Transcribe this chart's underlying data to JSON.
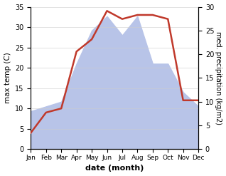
{
  "months": [
    "Jan",
    "Feb",
    "Mar",
    "Apr",
    "May",
    "Jun",
    "Jul",
    "Aug",
    "Sep",
    "Oct",
    "Nov",
    "Dec"
  ],
  "temperature": [
    4,
    9,
    10,
    24,
    27,
    34,
    32,
    33,
    33,
    32,
    12,
    12
  ],
  "precipitation": [
    8,
    9,
    10,
    18,
    25,
    28,
    24,
    28,
    18,
    18,
    12,
    9
  ],
  "temp_color": "#c0392b",
  "precip_fill_color": "#b8c4e8",
  "precip_edge_color": "#b8c4e8",
  "xlabel": "date (month)",
  "ylabel_left": "max temp (C)",
  "ylabel_right": "med. precipitation (kg/m2)",
  "ylim_left": [
    0,
    35
  ],
  "ylim_right": [
    0,
    30
  ],
  "yticks_left": [
    0,
    5,
    10,
    15,
    20,
    25,
    30,
    35
  ],
  "yticks_right": [
    0,
    5,
    10,
    15,
    20,
    25,
    30
  ],
  "background_color": "#ffffff"
}
